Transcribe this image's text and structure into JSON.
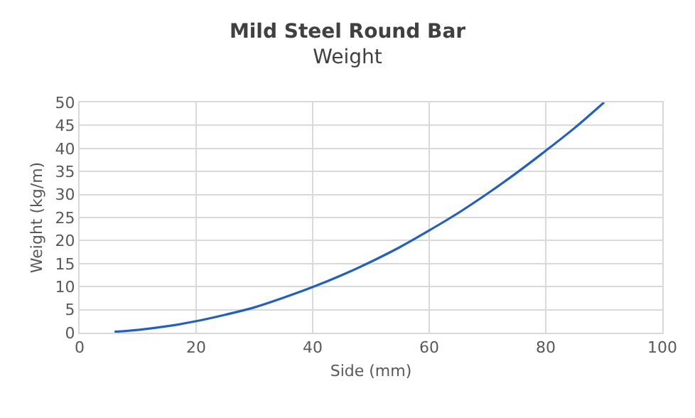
{
  "chart_data": {
    "type": "line",
    "title": "Mild Steel Round Bar",
    "subtitle": "Weight",
    "xlabel": "Side (mm)",
    "ylabel": "Weight (kg/m)",
    "x": [
      6,
      10,
      15,
      20,
      25,
      30,
      35,
      40,
      45,
      50,
      55,
      60,
      65,
      70,
      75,
      80,
      85,
      90
    ],
    "series": [
      {
        "color": "#1f5fc8",
        "values": [
          0.2,
          0.6,
          1.4,
          2.5,
          3.9,
          5.5,
          7.6,
          9.9,
          12.5,
          15.4,
          18.6,
          22.2,
          26,
          30.2,
          34.7,
          39.5,
          44.5,
          50
        ]
      }
    ],
    "xlim": [
      0,
      100
    ],
    "xticks": [
      0,
      20,
      40,
      60,
      80,
      100
    ],
    "ylim": [
      0,
      50
    ],
    "yticks": [
      0,
      5,
      10,
      15,
      20,
      25,
      30,
      35,
      40,
      45,
      50
    ],
    "grid": true,
    "marker": "none",
    "line_style": "solid"
  }
}
